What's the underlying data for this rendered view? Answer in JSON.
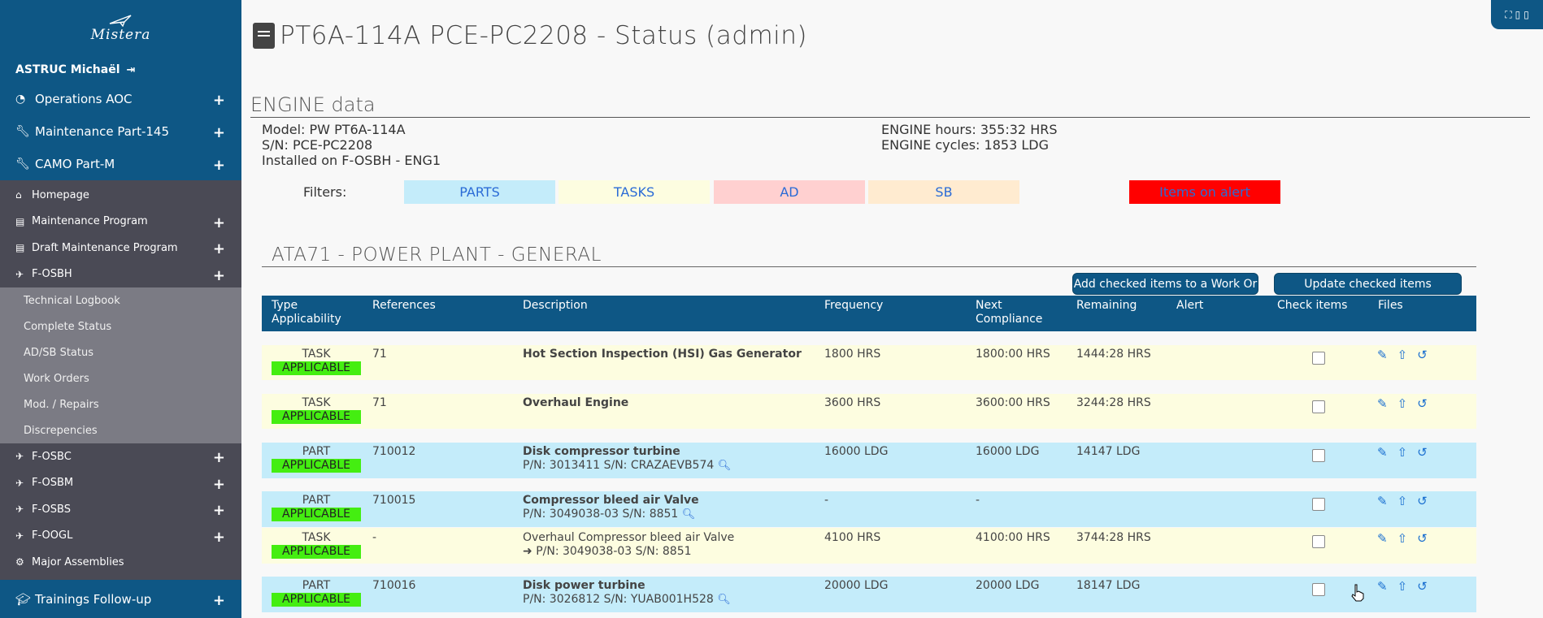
{
  "sidebar": {
    "logo": "Mistera",
    "user": "ASTRUC Michaël",
    "top_items": [
      {
        "label": "Operations AOC",
        "icon": "dashboard-icon"
      },
      {
        "label": "Maintenance Part-145",
        "icon": "wrench-icon"
      },
      {
        "label": "CAMO Part-M",
        "icon": "wrench-icon"
      }
    ],
    "sub_items": [
      {
        "label": "Homepage",
        "icon": "home-icon",
        "plus": false
      },
      {
        "label": "Maintenance Program",
        "icon": "book-icon",
        "plus": true
      },
      {
        "label": "Draft Maintenance Program",
        "icon": "book-icon",
        "plus": true
      },
      {
        "label": "F-OSBH",
        "icon": "plane-icon",
        "plus": true
      }
    ],
    "aircraft_items": [
      {
        "label": "Technical Logbook"
      },
      {
        "label": "Complete Status"
      },
      {
        "label": "AD/SB Status"
      },
      {
        "label": "Work Orders"
      },
      {
        "label": "Mod. / Repairs"
      },
      {
        "label": "Discrepencies"
      }
    ],
    "other_aircraft": [
      {
        "label": "F-OSBC"
      },
      {
        "label": "F-OSBM"
      },
      {
        "label": "F-OSBS"
      },
      {
        "label": "F-OOGL"
      }
    ],
    "major_assemblies": "Major Assemblies",
    "bottom": "Trainings Follow-up"
  },
  "page": {
    "title": "PT6A-114A PCE-PC2208 - Status (admin)",
    "section": "ENGINE data",
    "model": "Model: PW PT6A-114A",
    "sn": "S/N: PCE-PC2208",
    "installed": "Installed on F-OSBH - ENG1",
    "hours": "ENGINE hours: 355:32 HRS",
    "cycles": "ENGINE cycles: 1853 LDG",
    "filters_label": "Filters:",
    "filters": [
      {
        "label": "PARTS",
        "color": "#c4ecfa"
      },
      {
        "label": "TASKS",
        "color": "#fdfde0"
      },
      {
        "label": "AD",
        "color": "#ffd0d0"
      },
      {
        "label": "SB",
        "color": "#ffebd0"
      },
      {
        "label": "Items on alert",
        "color": "#ff0000"
      }
    ],
    "ata_title": "ATA71 - POWER PLANT - GENERAL",
    "btn_add": "Add checked items to a Work Or",
    "btn_update": "Update checked items"
  },
  "table": {
    "headers": {
      "type": "Type",
      "applicability": "Applicability",
      "references": "References",
      "description": "Description",
      "frequency": "Frequency",
      "next1": "Next",
      "next2": "Compliance",
      "remaining": "Remaining",
      "alert": "Alert",
      "check": "Check items",
      "files": "Files"
    },
    "rows": [
      {
        "type": "TASK",
        "badge": "APPLICABLE",
        "ref": "71",
        "desc": "Hot Section Inspection (HSI) Gas Generator",
        "pn": "",
        "freq": "1800 HRS",
        "next": "1800:00 HRS",
        "remaining": "1444:28 HRS"
      },
      {
        "type": "TASK",
        "badge": "APPLICABLE",
        "ref": "71",
        "desc": "Overhaul Engine",
        "pn": "",
        "freq": "3600 HRS",
        "next": "3600:00 HRS",
        "remaining": "3244:28 HRS"
      },
      {
        "type": "PART",
        "badge": "APPLICABLE",
        "ref": "710012",
        "desc": "Disk compressor turbine",
        "pn": "P/N: 3013411 S/N: CRAZAEVB574",
        "freq": "16000 LDG",
        "next": "16000 LDG",
        "remaining": "14147 LDG"
      },
      {
        "type": "PART",
        "badge": "APPLICABLE",
        "ref": "710015",
        "desc": "Compressor bleed air Valve",
        "pn": "P/N: 3049038-03 S/N: 8851",
        "freq": "-",
        "next": "-",
        "remaining": ""
      },
      {
        "type": "TASK",
        "badge": "APPLICABLE",
        "ref": "-",
        "desc": "Overhaul Compressor bleed air Valve",
        "pn": "P/N: 3049038-03 S/N: 8851",
        "freq": "4100 HRS",
        "next": "4100:00 HRS",
        "remaining": "3744:28 HRS"
      },
      {
        "type": "PART",
        "badge": "APPLICABLE",
        "ref": "710016",
        "desc": "Disk power turbine",
        "pn": "P/N: 3026812 S/N: YUAB001H528",
        "freq": "20000 LDG",
        "next": "20000 LDG",
        "remaining": "18147 LDG"
      }
    ]
  }
}
